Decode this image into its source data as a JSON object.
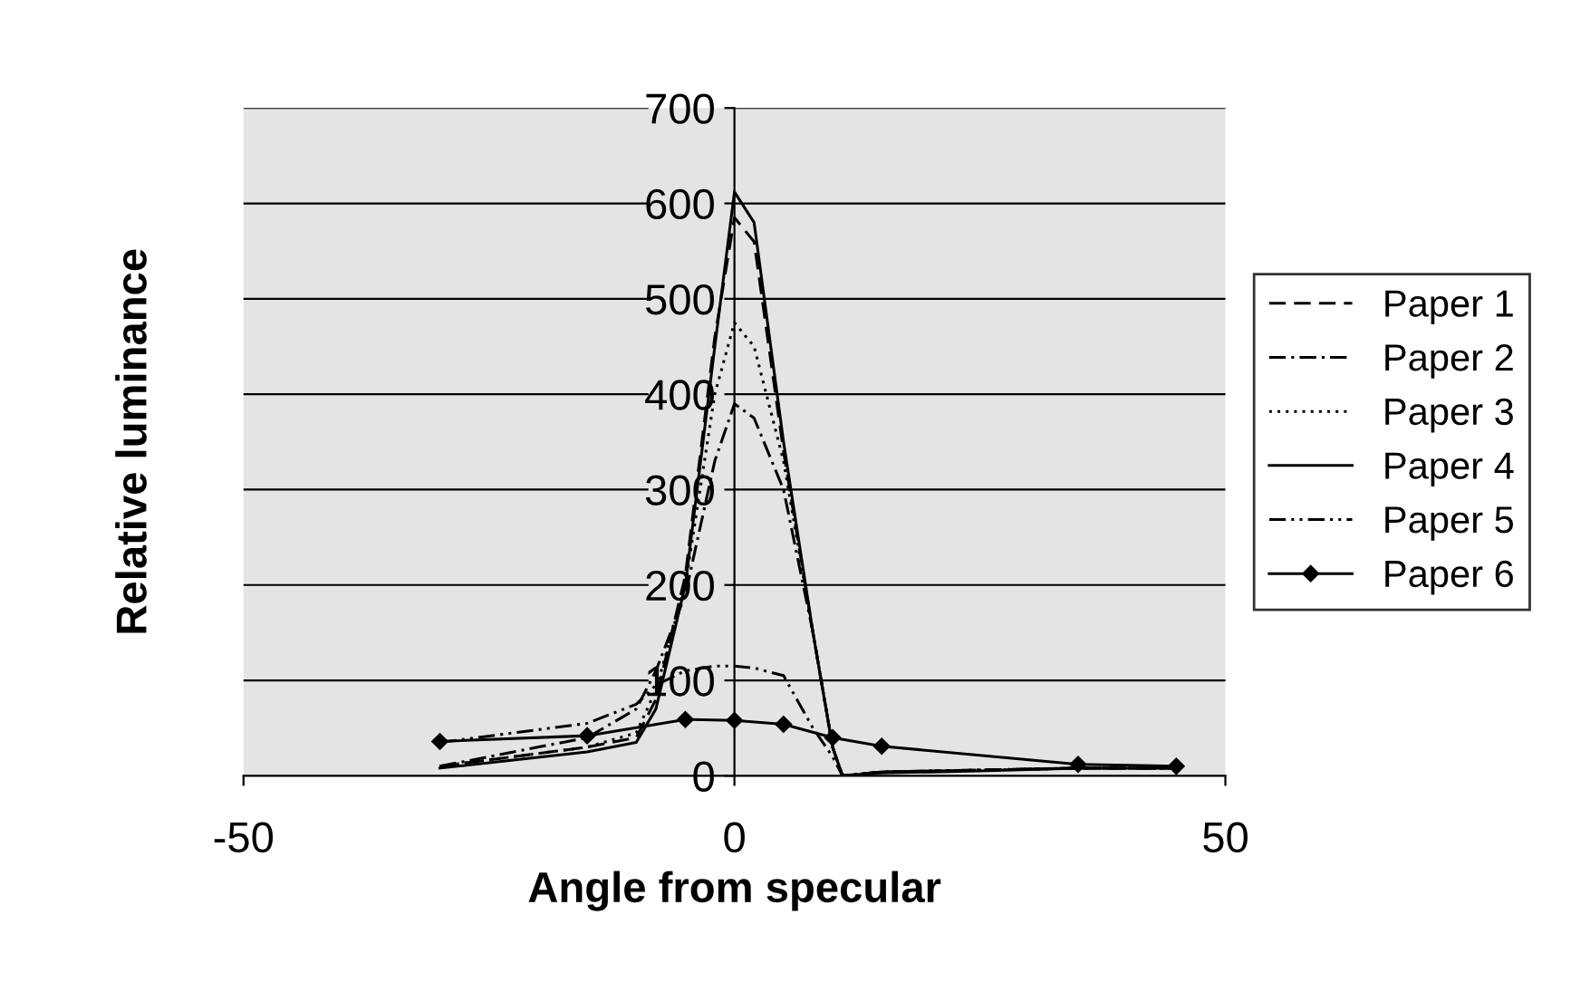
{
  "chart_data": {
    "type": "line",
    "xlabel": "Angle from specular",
    "ylabel": "Relative luminance",
    "xlim": [
      -50,
      50
    ],
    "ylim": [
      0,
      700
    ],
    "xticks": [
      -50,
      0,
      50
    ],
    "yticks": [
      0,
      100,
      200,
      300,
      400,
      500,
      600,
      700
    ],
    "grid": "y",
    "legend": "right",
    "series": [
      {
        "name": "Paper 1",
        "color": "#000000",
        "line_style": "dashed",
        "marker": "none",
        "x": [
          -30,
          -15,
          -10,
          -8,
          -5,
          -2,
          0,
          2,
          5,
          8,
          10,
          11,
          15,
          25,
          35,
          45
        ],
        "values": [
          10,
          30,
          40,
          80,
          210,
          460,
          585,
          560,
          340,
          150,
          30,
          0,
          4,
          6,
          8,
          8
        ]
      },
      {
        "name": "Paper 2",
        "color": "#000000",
        "line_style": "dashdot",
        "marker": "none",
        "x": [
          -30,
          -15,
          -10,
          -8,
          -5,
          -2,
          0,
          2,
          5,
          8,
          10,
          11,
          15,
          25,
          35,
          45
        ],
        "values": [
          10,
          40,
          70,
          110,
          190,
          330,
          390,
          375,
          300,
          150,
          30,
          0,
          4,
          6,
          8,
          8
        ]
      },
      {
        "name": "Paper 3",
        "color": "#000000",
        "line_style": "dotted",
        "marker": "none",
        "x": [
          -30,
          -15,
          -10,
          -8,
          -5,
          -2,
          0,
          2,
          5,
          8,
          10,
          11,
          15,
          25,
          35,
          45
        ],
        "values": [
          10,
          30,
          45,
          90,
          200,
          400,
          475,
          450,
          330,
          150,
          30,
          0,
          4,
          6,
          8,
          8
        ]
      },
      {
        "name": "Paper 4",
        "color": "#000000",
        "line_style": "solid",
        "marker": "none",
        "x": [
          -30,
          -15,
          -10,
          -8,
          -5,
          -2,
          0,
          2,
          5,
          8,
          10,
          11,
          15,
          25,
          35,
          45
        ],
        "values": [
          8,
          25,
          35,
          70,
          200,
          450,
          612,
          580,
          350,
          150,
          30,
          0,
          3,
          5,
          8,
          8
        ]
      },
      {
        "name": "Paper 5",
        "color": "#000000",
        "line_style": "dashdotdot",
        "marker": "none",
        "x": [
          -30,
          -15,
          -10,
          -8,
          -5,
          -2,
          0,
          2,
          5,
          8,
          10,
          11,
          15,
          25,
          35,
          45
        ],
        "values": [
          35,
          55,
          75,
          95,
          110,
          115,
          115,
          113,
          105,
          50,
          20,
          0,
          4,
          6,
          8,
          8
        ]
      },
      {
        "name": "Paper 6",
        "color": "#000000",
        "line_style": "solid",
        "marker": "diamond",
        "x": [
          -30,
          -15,
          -5,
          0,
          5,
          10,
          15,
          35,
          45
        ],
        "values": [
          36,
          42,
          59,
          58,
          54,
          40,
          31,
          12,
          10
        ]
      }
    ]
  }
}
